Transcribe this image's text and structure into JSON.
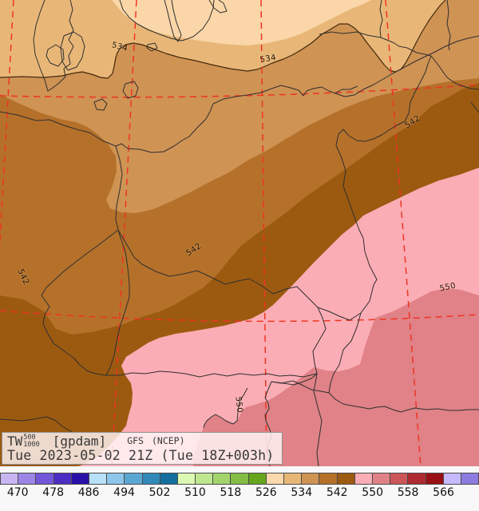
{
  "info_box": {
    "parameter": "TW",
    "level_upper": "500",
    "level_lower": "1000",
    "units_label": "[gpdam]",
    "model_label": "GFS",
    "center_label": "(NCEP)",
    "valid_line": "Tue 2023-05-02 21Z (Tue 18Z+003h)"
  },
  "map_data": {
    "type": "filled_contour_map",
    "quantity": "relative topography 500/1000 hPa thickness",
    "unit": "gpdam",
    "fill_interval": 4,
    "labeled_contours": [
      534,
      542,
      550
    ],
    "contour_labels": [
      {
        "text": "534",
        "value": 534
      },
      {
        "text": "534",
        "value": 534
      },
      {
        "text": "542",
        "value": 542
      },
      {
        "text": "542",
        "value": 542
      },
      {
        "text": "542",
        "value": 542
      },
      {
        "text": "550",
        "value": 550
      },
      {
        "text": "550",
        "value": 550
      }
    ],
    "fill_bands_visible": [
      {
        "range": "526-530",
        "color": "#fcd9ad"
      },
      {
        "range": "530-534",
        "color": "#e8b778"
      },
      {
        "range": "534-538",
        "color": "#cf9354"
      },
      {
        "range": "538-542",
        "color": "#b5712a"
      },
      {
        "range": "542-546",
        "color": "#9c5a10"
      },
      {
        "range": "546-550",
        "color": "#fbadb5"
      },
      {
        "range": "550-554",
        "color": "#e08287"
      }
    ],
    "graticule_color": "#ee3524",
    "border_color": "#2f2f2f",
    "contour_line_color": "#43290b"
  },
  "colorbar": {
    "tick_labels": [
      "470",
      "478",
      "486",
      "494",
      "502",
      "510",
      "518",
      "526",
      "534",
      "542",
      "550",
      "558",
      "566"
    ],
    "colors": [
      "#c9b5f2",
      "#9d85e8",
      "#7257d9",
      "#4b2fc4",
      "#2a10a8",
      "#b8e1fa",
      "#8ec6ec",
      "#5ba7d4",
      "#3189ba",
      "#156f9e",
      "#dcf9b3",
      "#bfe78f",
      "#a2d46b",
      "#83bd45",
      "#66a51d",
      "#fcd9ad",
      "#e8b778",
      "#cf9354",
      "#b5712a",
      "#9c5a10",
      "#fbadb5",
      "#e08287",
      "#cc5558",
      "#ae2a30",
      "#990f15",
      "#c6b9fc",
      "#8d7ce0"
    ]
  }
}
